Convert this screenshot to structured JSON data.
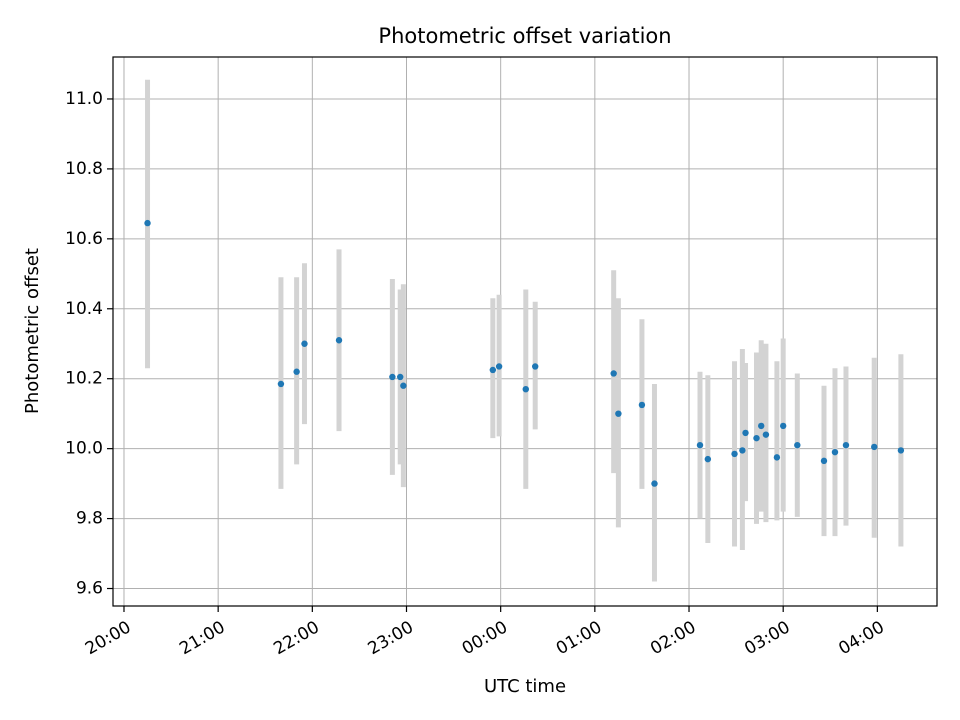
{
  "chart_data": {
    "type": "scatter",
    "title": "Photometric offset variation",
    "xlabel": "UTC time",
    "ylabel": "Photometric offset",
    "x_axis_kind": "time",
    "xlim": [
      "19:53",
      "04:38"
    ],
    "ylim": [
      9.55,
      11.12
    ],
    "grid": true,
    "colors": {
      "point": "#1f77b4",
      "errorbar": "#d3d3d3",
      "grid": "#b0b0b0"
    },
    "x_ticks": [
      "20:00",
      "21:00",
      "22:00",
      "23:00",
      "00:00",
      "01:00",
      "02:00",
      "03:00",
      "04:00"
    ],
    "y_ticks": [
      "9.6",
      "9.8",
      "10.0",
      "10.2",
      "10.4",
      "10.6",
      "10.8",
      "11.0"
    ],
    "points": [
      {
        "t": "20:15",
        "y": 10.645,
        "lo": 10.23,
        "hi": 11.055
      },
      {
        "t": "21:40",
        "y": 10.185,
        "lo": 9.885,
        "hi": 10.49
      },
      {
        "t": "21:50",
        "y": 10.22,
        "lo": 9.955,
        "hi": 10.49
      },
      {
        "t": "21:55",
        "y": 10.3,
        "lo": 10.07,
        "hi": 10.53
      },
      {
        "t": "22:17",
        "y": 10.31,
        "lo": 10.05,
        "hi": 10.57
      },
      {
        "t": "22:51",
        "y": 10.205,
        "lo": 9.925,
        "hi": 10.485
      },
      {
        "t": "22:56",
        "y": 10.205,
        "lo": 9.955,
        "hi": 10.455
      },
      {
        "t": "22:58",
        "y": 10.18,
        "lo": 9.89,
        "hi": 10.47
      },
      {
        "t": "23:55",
        "y": 10.225,
        "lo": 10.03,
        "hi": 10.43
      },
      {
        "t": "23:59",
        "y": 10.235,
        "lo": 10.035,
        "hi": 10.44
      },
      {
        "t": "00:16",
        "y": 10.17,
        "lo": 9.885,
        "hi": 10.455
      },
      {
        "t": "00:22",
        "y": 10.235,
        "lo": 10.055,
        "hi": 10.42
      },
      {
        "t": "01:12",
        "y": 10.215,
        "lo": 9.93,
        "hi": 10.51
      },
      {
        "t": "01:15",
        "y": 10.1,
        "lo": 9.775,
        "hi": 10.43
      },
      {
        "t": "01:30",
        "y": 10.125,
        "lo": 9.885,
        "hi": 10.37
      },
      {
        "t": "01:38",
        "y": 9.9,
        "lo": 9.62,
        "hi": 10.185
      },
      {
        "t": "02:07",
        "y": 10.01,
        "lo": 9.8,
        "hi": 10.22
      },
      {
        "t": "02:12",
        "y": 9.97,
        "lo": 9.73,
        "hi": 10.21
      },
      {
        "t": "02:29",
        "y": 9.985,
        "lo": 9.72,
        "hi": 10.25
      },
      {
        "t": "02:34",
        "y": 9.995,
        "lo": 9.71,
        "hi": 10.285
      },
      {
        "t": "02:36",
        "y": 10.045,
        "lo": 9.85,
        "hi": 10.245
      },
      {
        "t": "02:43",
        "y": 10.03,
        "lo": 9.785,
        "hi": 10.275
      },
      {
        "t": "02:46",
        "y": 10.065,
        "lo": 9.82,
        "hi": 10.31
      },
      {
        "t": "02:49",
        "y": 10.04,
        "lo": 9.79,
        "hi": 10.3
      },
      {
        "t": "02:56",
        "y": 9.975,
        "lo": 9.795,
        "hi": 10.25
      },
      {
        "t": "03:00",
        "y": 10.065,
        "lo": 9.82,
        "hi": 10.315
      },
      {
        "t": "03:09",
        "y": 10.01,
        "lo": 9.805,
        "hi": 10.215
      },
      {
        "t": "03:26",
        "y": 9.965,
        "lo": 9.75,
        "hi": 10.18
      },
      {
        "t": "03:33",
        "y": 9.99,
        "lo": 9.75,
        "hi": 10.23
      },
      {
        "t": "03:40",
        "y": 10.01,
        "lo": 9.78,
        "hi": 10.235
      },
      {
        "t": "03:58",
        "y": 10.005,
        "lo": 9.745,
        "hi": 10.26
      },
      {
        "t": "04:15",
        "y": 9.995,
        "lo": 9.72,
        "hi": 10.27
      }
    ]
  }
}
